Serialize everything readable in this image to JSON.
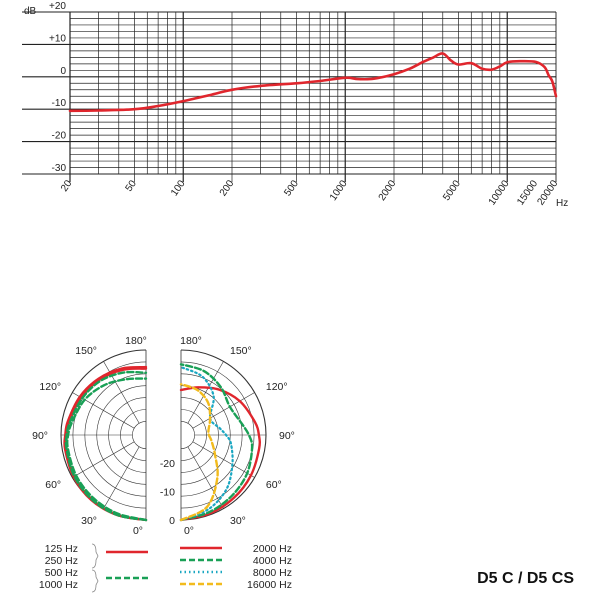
{
  "chart_data": [
    {
      "type": "line",
      "x_unit": "Hz",
      "y_unit": "dB",
      "x_scale": "log",
      "xlim": [
        20,
        20000
      ],
      "ylim": [
        -30,
        20
      ],
      "grid": true,
      "x_ticks": [
        {
          "value": 20,
          "label": "20"
        },
        {
          "value": 50,
          "label": "50"
        },
        {
          "value": 100,
          "label": "100"
        },
        {
          "value": 200,
          "label": "200"
        },
        {
          "value": 500,
          "label": "500"
        },
        {
          "value": 1000,
          "label": "1000"
        },
        {
          "value": 2000,
          "label": "2000"
        },
        {
          "value": 5000,
          "label": "5000"
        },
        {
          "value": 10000,
          "label": "10000"
        },
        {
          "value": 15000,
          "label": "15000"
        },
        {
          "value": 20000,
          "label": "20000"
        }
      ],
      "y_ticks": [
        {
          "value": 20,
          "label": "+20"
        },
        {
          "value": 10,
          "label": "+10"
        },
        {
          "value": 0,
          "label": "0"
        },
        {
          "value": -10,
          "label": "-10"
        },
        {
          "value": -20,
          "label": "-20"
        },
        {
          "value": -30,
          "label": "-30"
        }
      ],
      "series": [
        {
          "color": "#e0262d",
          "x": [
            20,
            30,
            50,
            70,
            100,
            150,
            200,
            300,
            500,
            700,
            1000,
            1200,
            1500,
            2000,
            2500,
            3000,
            3500,
            4000,
            4500,
            5000,
            6000,
            7000,
            8000,
            9000,
            10000,
            12000,
            15000,
            17000,
            18000,
            19000,
            20000
          ],
          "y": [
            -10.5,
            -10.4,
            -10.0,
            -9.0,
            -7.5,
            -5.5,
            -4.0,
            -2.8,
            -2.0,
            -1.3,
            -0.3,
            -0.7,
            -0.6,
            0.8,
            2.5,
            4.5,
            6.0,
            7.2,
            5.0,
            3.8,
            4.2,
            2.5,
            2.2,
            3.2,
            4.5,
            4.8,
            4.6,
            3.0,
            0.5,
            -1.5,
            -6.0
          ]
        }
      ]
    },
    {
      "type": "polar",
      "angle_ticks": [
        "180°",
        "150°",
        "120°",
        "90°",
        "60°",
        "30°",
        "0°"
      ],
      "radial_ticks": [
        "-20",
        "-10",
        "0"
      ],
      "series": [
        {
          "name": "125 Hz",
          "side": "left",
          "color": "#e0262d",
          "dash": "solid",
          "angles_deg": [
            0,
            20,
            40,
            60,
            80,
            90,
            100,
            120,
            140,
            160,
            180
          ],
          "db": [
            0,
            0,
            0,
            -0.5,
            -1,
            -1.5,
            -2,
            -3,
            -4,
            -5,
            -6
          ]
        },
        {
          "name": "250 Hz",
          "side": "left",
          "color": "#e0262d",
          "dash": "solid",
          "angles_deg": [
            0,
            20,
            40,
            60,
            80,
            90,
            100,
            120,
            140,
            160,
            180
          ],
          "db": [
            0,
            0,
            -0.3,
            -0.8,
            -1.3,
            -2,
            -2.5,
            -3.5,
            -4.5,
            -5.5,
            -6.5
          ]
        },
        {
          "name": "500 Hz",
          "side": "left",
          "color": "#19a056",
          "dash": "dashed",
          "angles_deg": [
            0,
            20,
            40,
            60,
            80,
            90,
            100,
            120,
            140,
            160,
            180
          ],
          "db": [
            0,
            0,
            -0.3,
            -0.8,
            -1.5,
            -2,
            -2.8,
            -4,
            -5,
            -6.5,
            -8
          ]
        },
        {
          "name": "1000 Hz",
          "side": "left",
          "color": "#19a056",
          "dash": "dashed",
          "angles_deg": [
            0,
            20,
            40,
            60,
            80,
            90,
            100,
            120,
            140,
            160,
            180
          ],
          "db": [
            0,
            -0.5,
            -1,
            -1.5,
            -2,
            -2.5,
            -3.5,
            -5,
            -7,
            -9,
            -10
          ]
        },
        {
          "name": "2000 Hz",
          "side": "right",
          "color": "#e0262d",
          "dash": "solid",
          "angles_deg": [
            0,
            20,
            40,
            60,
            80,
            90,
            100,
            120,
            140,
            160,
            180
          ],
          "db": [
            0,
            -0.5,
            -1,
            -1.5,
            -2,
            -2.5,
            -3.5,
            -6,
            -9,
            -12,
            -14
          ]
        },
        {
          "name": "4000 Hz",
          "side": "right",
          "color": "#19a056",
          "dash": "dashed",
          "angles_deg": [
            0,
            20,
            40,
            60,
            80,
            90,
            100,
            120,
            140,
            160,
            180
          ],
          "db": [
            0,
            -1,
            -2,
            -3,
            -4.5,
            -6,
            -8,
            -10,
            -8,
            -6,
            -5
          ]
        },
        {
          "name": "8000 Hz",
          "side": "right",
          "color": "#1aa7c2",
          "dash": "dotted",
          "angles_deg": [
            0,
            20,
            40,
            60,
            80,
            90,
            100,
            120,
            140,
            160,
            180
          ],
          "db": [
            0,
            -2,
            -5,
            -9,
            -12,
            -14,
            -16,
            -18,
            -12,
            -8,
            -6
          ]
        },
        {
          "name": "16000 Hz",
          "side": "right",
          "color": "#f2bb1d",
          "dash": "dashed",
          "angles_deg": [
            0,
            20,
            40,
            60,
            80,
            90,
            100,
            120,
            140,
            160,
            180
          ],
          "db": [
            0,
            -3,
            -10,
            -16,
            -19,
            -20,
            -20,
            -18,
            -15,
            -13,
            -12
          ]
        }
      ]
    }
  ],
  "title": "D5 C / D5 CS"
}
